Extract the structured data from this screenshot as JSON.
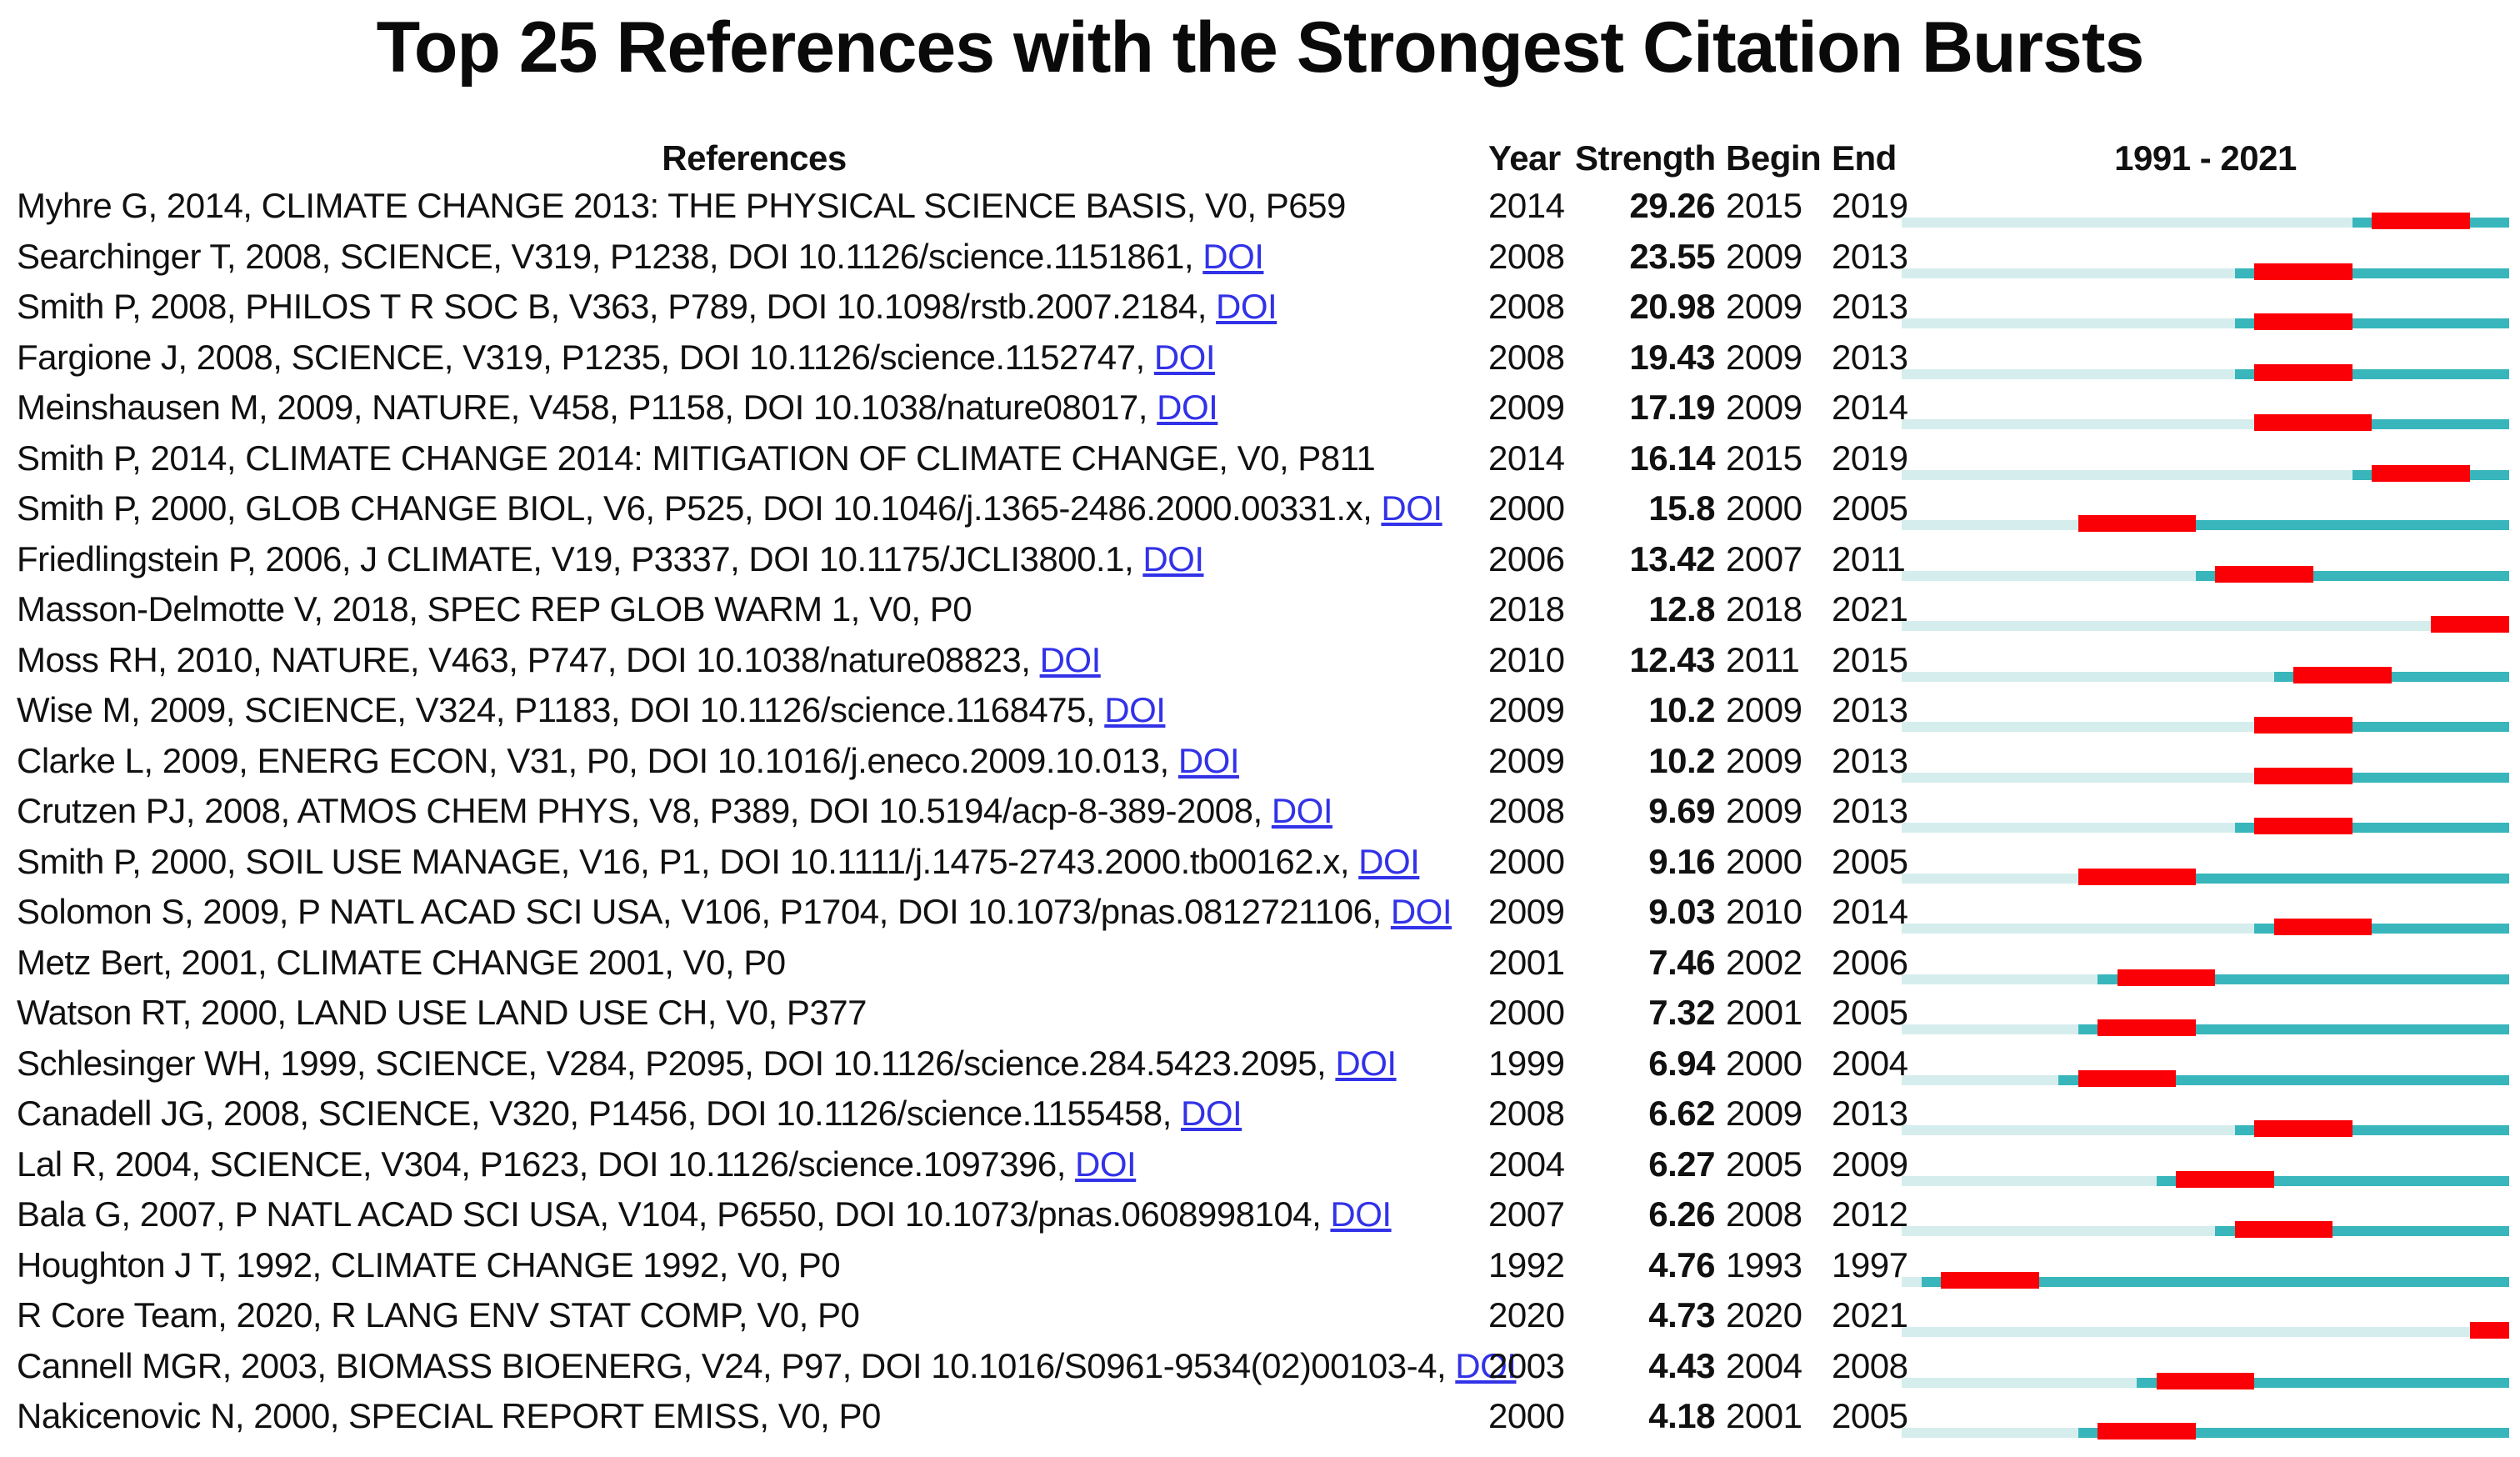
{
  "title": "Top 25 References with the Strongest Citation Bursts",
  "columns": {
    "references": "References",
    "year": "Year",
    "strength": "Strength",
    "begin": "Begin",
    "end": "End",
    "range": "1991 - 2021"
  },
  "chart_data": {
    "type": "table",
    "title": "Top 25 References with the Strongest Citation Bursts",
    "timeline": {
      "start": 1991,
      "end": 2021,
      "label": "1991 - 2021"
    },
    "colors": {
      "burst_red": "#fa0006",
      "active_teal": "#38b6bc",
      "inactive_pale": "#d6eded",
      "doi_link_blue": "#3232e8",
      "text_black": "#111111"
    },
    "rows": [
      {
        "reference": "Myhre G, 2014, CLIMATE CHANGE 2013: THE PHYSICAL SCIENCE BASIS, V0, P659",
        "doi_link": "",
        "year": 2014,
        "strength": "29.26",
        "begin": 2015,
        "end": 2019
      },
      {
        "reference": "Searchinger T, 2008, SCIENCE, V319, P1238, DOI 10.1126/science.1151861,",
        "doi_link": "DOI",
        "year": 2008,
        "strength": "23.55",
        "begin": 2009,
        "end": 2013
      },
      {
        "reference": "Smith P, 2008, PHILOS T R SOC B, V363, P789, DOI 10.1098/rstb.2007.2184,",
        "doi_link": "DOI",
        "year": 2008,
        "strength": "20.98",
        "begin": 2009,
        "end": 2013
      },
      {
        "reference": "Fargione J, 2008, SCIENCE, V319, P1235, DOI 10.1126/science.1152747,",
        "doi_link": "DOI",
        "year": 2008,
        "strength": "19.43",
        "begin": 2009,
        "end": 2013
      },
      {
        "reference": "Meinshausen M, 2009, NATURE, V458, P1158, DOI 10.1038/nature08017,",
        "doi_link": "DOI",
        "year": 2009,
        "strength": "17.19",
        "begin": 2009,
        "end": 2014
      },
      {
        "reference": "Smith P, 2014, CLIMATE CHANGE 2014: MITIGATION OF CLIMATE CHANGE, V0, P811",
        "doi_link": "",
        "year": 2014,
        "strength": "16.14",
        "begin": 2015,
        "end": 2019
      },
      {
        "reference": "Smith P, 2000, GLOB CHANGE BIOL, V6, P525, DOI 10.1046/j.1365-2486.2000.00331.x,",
        "doi_link": "DOI",
        "year": 2000,
        "strength": "15.8",
        "begin": 2000,
        "end": 2005
      },
      {
        "reference": "Friedlingstein P, 2006, J CLIMATE, V19, P3337, DOI 10.1175/JCLI3800.1,",
        "doi_link": "DOI",
        "year": 2006,
        "strength": "13.42",
        "begin": 2007,
        "end": 2011
      },
      {
        "reference": "Masson-Delmotte V, 2018, SPEC REP GLOB WARM 1, V0, P0",
        "doi_link": "",
        "year": 2018,
        "strength": "12.8",
        "begin": 2018,
        "end": 2021
      },
      {
        "reference": "Moss RH, 2010, NATURE, V463, P747, DOI 10.1038/nature08823,",
        "doi_link": "DOI",
        "year": 2010,
        "strength": "12.43",
        "begin": 2011,
        "end": 2015
      },
      {
        "reference": "Wise M, 2009, SCIENCE, V324, P1183, DOI 10.1126/science.1168475,",
        "doi_link": "DOI",
        "year": 2009,
        "strength": "10.2",
        "begin": 2009,
        "end": 2013
      },
      {
        "reference": "Clarke L, 2009, ENERG ECON, V31, P0, DOI 10.1016/j.eneco.2009.10.013,",
        "doi_link": "DOI",
        "year": 2009,
        "strength": "10.2",
        "begin": 2009,
        "end": 2013
      },
      {
        "reference": "Crutzen PJ, 2008, ATMOS CHEM PHYS, V8, P389, DOI 10.5194/acp-8-389-2008,",
        "doi_link": "DOI",
        "year": 2008,
        "strength": "9.69",
        "begin": 2009,
        "end": 2013
      },
      {
        "reference": "Smith P, 2000, SOIL USE MANAGE, V16, P1, DOI 10.1111/j.1475-2743.2000.tb00162.x,",
        "doi_link": "DOI",
        "year": 2000,
        "strength": "9.16",
        "begin": 2000,
        "end": 2005
      },
      {
        "reference": "Solomon S, 2009, P NATL ACAD SCI USA, V106, P1704, DOI 10.1073/pnas.0812721106,",
        "doi_link": "DOI",
        "year": 2009,
        "strength": "9.03",
        "begin": 2010,
        "end": 2014
      },
      {
        "reference": "Metz Bert, 2001, CLIMATE CHANGE 2001, V0, P0",
        "doi_link": "",
        "year": 2001,
        "strength": "7.46",
        "begin": 2002,
        "end": 2006
      },
      {
        "reference": "Watson RT, 2000, LAND USE LAND USE CH, V0, P377",
        "doi_link": "",
        "year": 2000,
        "strength": "7.32",
        "begin": 2001,
        "end": 2005
      },
      {
        "reference": "Schlesinger WH, 1999, SCIENCE, V284, P2095, DOI 10.1126/science.284.5423.2095,",
        "doi_link": "DOI",
        "year": 1999,
        "strength": "6.94",
        "begin": 2000,
        "end": 2004
      },
      {
        "reference": "Canadell JG, 2008, SCIENCE, V320, P1456, DOI 10.1126/science.1155458,",
        "doi_link": "DOI",
        "year": 2008,
        "strength": "6.62",
        "begin": 2009,
        "end": 2013
      },
      {
        "reference": "Lal R, 2004, SCIENCE, V304, P1623, DOI 10.1126/science.1097396,",
        "doi_link": "DOI",
        "year": 2004,
        "strength": "6.27",
        "begin": 2005,
        "end": 2009
      },
      {
        "reference": "Bala G, 2007, P NATL ACAD SCI USA, V104, P6550, DOI 10.1073/pnas.0608998104,",
        "doi_link": "DOI",
        "year": 2007,
        "strength": "6.26",
        "begin": 2008,
        "end": 2012
      },
      {
        "reference": "Houghton J T, 1992, CLIMATE CHANGE 1992, V0, P0",
        "doi_link": "",
        "year": 1992,
        "strength": "4.76",
        "begin": 1993,
        "end": 1997
      },
      {
        "reference": "R Core Team, 2020, R LANG ENV STAT COMP, V0, P0",
        "doi_link": "",
        "year": 2020,
        "strength": "4.73",
        "begin": 2020,
        "end": 2021
      },
      {
        "reference": "Cannell MGR, 2003, BIOMASS BIOENERG, V24, P97, DOI 10.1016/S0961-9534(02)00103-4,",
        "doi_link": "DOI",
        "year": 2003,
        "strength": "4.43",
        "begin": 2004,
        "end": 2008
      },
      {
        "reference": "Nakicenovic N, 2000, SPECIAL REPORT EMISS, V0, P0",
        "doi_link": "",
        "year": 2000,
        "strength": "4.18",
        "begin": 2001,
        "end": 2005
      }
    ]
  }
}
